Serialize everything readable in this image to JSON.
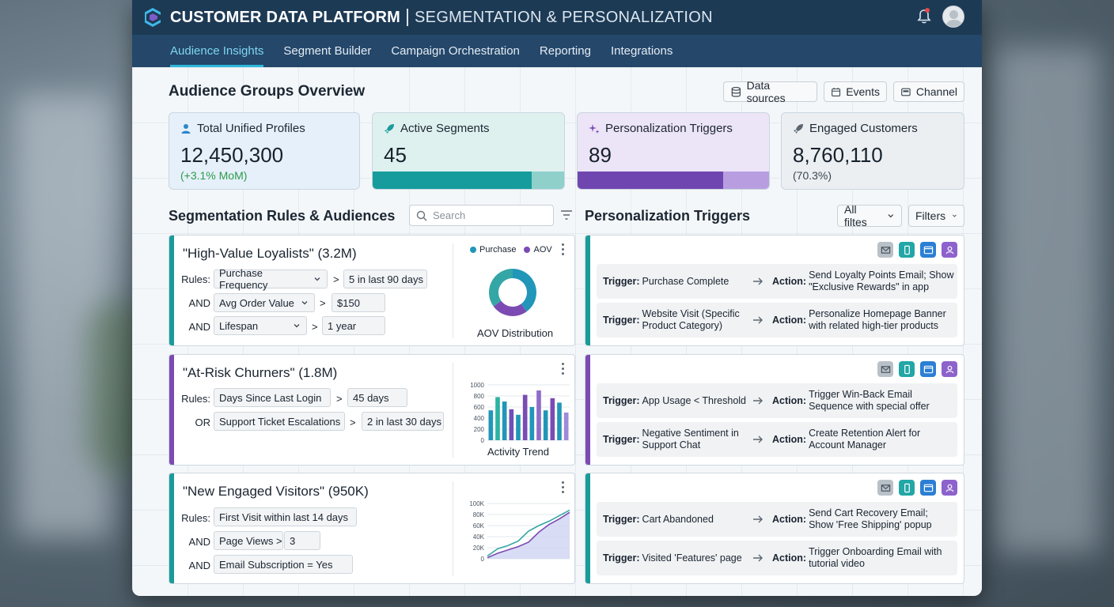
{
  "window": {
    "title": "CUSTOMER DATA PLATFORM",
    "subtitle": "SEGMENTATION & PERSONALIZATION"
  },
  "nav": {
    "tabs": [
      {
        "label": "Audience Insights",
        "active": true
      },
      {
        "label": "Segment Builder",
        "active": false
      },
      {
        "label": "Campaign Orchestration",
        "active": false
      },
      {
        "label": "Reporting",
        "active": false
      },
      {
        "label": "Integrations",
        "active": false
      }
    ]
  },
  "overview": {
    "title": "Audience Groups Overview",
    "buttons": {
      "data_sources": "Data sources",
      "events": "Events",
      "channel": "Channel"
    }
  },
  "kpis": [
    {
      "label": "Total Unified Profiles",
      "value": "12,450,300",
      "sub": "(+3.1% MoM)",
      "icon": "user-icon"
    },
    {
      "label": "Active Segments",
      "value": "45",
      "icon": "rocket-icon",
      "bar_fill": 0.83
    },
    {
      "label": "Personalization Triggers",
      "value": "89",
      "icon": "sparkle-icon",
      "bar_fill": 0.76
    },
    {
      "label": "Engaged Customers",
      "value": "8,760,110",
      "sub": "(70.3%)",
      "icon": "rocket-icon"
    }
  ],
  "segmentation": {
    "title": "Segmentation Rules & Audiences",
    "search_placeholder": "Search"
  },
  "triggers_panel": {
    "title": "Personalization Triggers",
    "all_filters": "All filtes",
    "filters": "Filters"
  },
  "segments": [
    {
      "title": "\"High-Value Loyalists\" (3.2M)",
      "rules": [
        {
          "prefix": "Rules:",
          "field": "Purchase Frequency",
          "op": ">",
          "value": "5 in last 90 days"
        },
        {
          "prefix": "AND",
          "field": "Avg Order Value",
          "op": ">",
          "value": "$150"
        },
        {
          "prefix": "AND",
          "field": "Lifespan",
          "op": ">",
          "value": "1 year"
        }
      ],
      "chart_caption": "AOV Distribution",
      "legend": [
        "Purchase",
        "AOV"
      ]
    },
    {
      "title": "\"At-Risk Churners\" (1.8M)",
      "rules": [
        {
          "prefix": "Rules:",
          "field": "Days Since Last Login",
          "op": ">",
          "value": "45 days"
        },
        {
          "prefix": "OR",
          "field": "Support Ticket Escalations",
          "op": ">",
          "value": "2 in last 30 days"
        }
      ],
      "chart_caption": "Activity Trend"
    },
    {
      "title": "\"New Engaged Visitors\" (950K)",
      "rules": [
        {
          "prefix": "Rules:",
          "field": "First Visit within last 14 days"
        },
        {
          "prefix": "AND",
          "field": "Page Views >",
          "value": "3"
        },
        {
          "prefix": "AND",
          "field": "Email Subscription = Yes"
        }
      ]
    }
  ],
  "trigger_groups": [
    {
      "rows": [
        {
          "trigger_label": "Trigger:",
          "trigger": "Purchase Complete",
          "action_label": "Action:",
          "action": "Send Loyalty Points Email; Show \"Exclusive Rewards\" in app"
        },
        {
          "trigger_label": "Trigger:",
          "trigger": "Website Visit (Specific Product Category)",
          "action_label": "Action:",
          "action": "Personalize Homepage Banner with related high-tier products"
        }
      ]
    },
    {
      "rows": [
        {
          "trigger_label": "Trigger:",
          "trigger": "App Usage < Threshold",
          "action_label": "Action:",
          "action": "Trigger Win-Back Email Sequence with special offer"
        },
        {
          "trigger_label": "Trigger:",
          "trigger": "Negative Sentiment in Support Chat",
          "action_label": "Action:",
          "action": "Create Retention Alert for Account Manager"
        }
      ]
    },
    {
      "rows": [
        {
          "trigger_label": "Trigger:",
          "trigger": "Cart Abandoned",
          "action_label": "Action:",
          "action": "Send Cart Recovery Email; Show 'Free Shipping' popup"
        },
        {
          "trigger_label": "Trigger:",
          "trigger": "Visited 'Features' page",
          "action_label": "Action:",
          "action": "Trigger Onboarding Email with tutorial video"
        }
      ]
    }
  ],
  "chart_data": [
    {
      "type": "pie",
      "title": "AOV Distribution",
      "donut": true,
      "legend": [
        "Purchase",
        "AOV"
      ],
      "slices": [
        {
          "name": "Purchase",
          "value": 40,
          "color": "#2196b8"
        },
        {
          "name": "AOV",
          "value": 25,
          "color": "#7b4bb3"
        },
        {
          "name": "",
          "value": 35,
          "color": "#34a6a6"
        }
      ]
    },
    {
      "type": "bar",
      "title": "Activity Trend",
      "y_ticks": [
        "1000",
        "800",
        "600",
        "400",
        "200",
        "0"
      ],
      "ylim": [
        0,
        1000
      ],
      "values": [
        540,
        780,
        700,
        560,
        460,
        820,
        600,
        900,
        540,
        760,
        680,
        500
      ],
      "colors": [
        "#2196b8",
        "#2bb3a3",
        "#2196b8",
        "#6f4fb8",
        "#2196b8",
        "#7b4bb3",
        "#2196b8",
        "#8f6cc8",
        "#2196b8",
        "#7b4bb3",
        "#2196b8",
        "#9d8ad8"
      ]
    },
    {
      "type": "area",
      "y_ticks": [
        "100K",
        "80K",
        "60K",
        "40K",
        "20K",
        "0"
      ],
      "ylim": [
        0,
        100000
      ],
      "series": [
        {
          "values": [
            5000,
            18000,
            24000,
            32000,
            50000,
            60000,
            68000,
            78000,
            88000
          ],
          "color": "#34a6a6"
        },
        {
          "values": [
            2000,
            10000,
            16000,
            22000,
            30000,
            48000,
            62000,
            72000,
            84000
          ],
          "color": "#7b4bb3"
        }
      ]
    }
  ],
  "colors": {
    "teal": "#1a9b9b",
    "purple": "#7b4bb3",
    "navy": "#1d3a55",
    "nav_active": "#7fd6f0"
  }
}
